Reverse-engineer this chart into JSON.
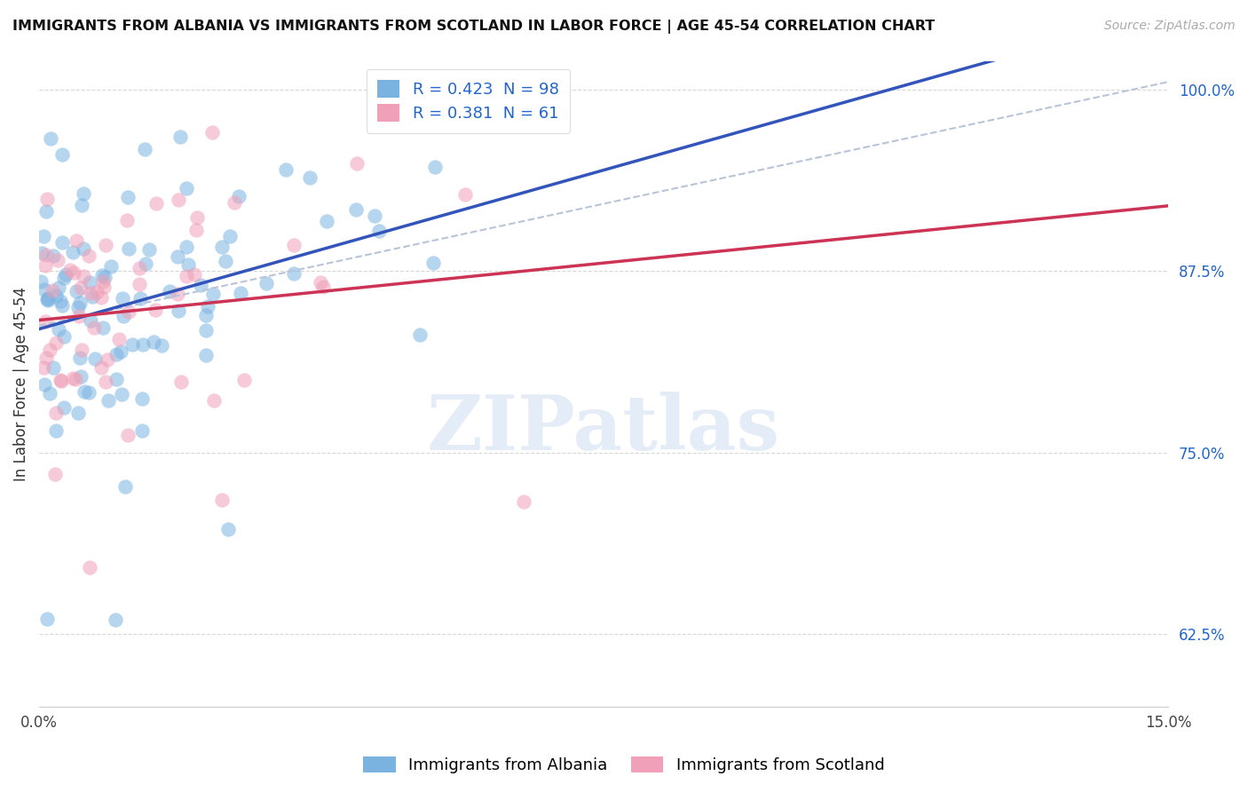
{
  "title": "IMMIGRANTS FROM ALBANIA VS IMMIGRANTS FROM SCOTLAND IN LABOR FORCE | AGE 45-54 CORRELATION CHART",
  "source": "Source: ZipAtlas.com",
  "ylabel": "In Labor Force | Age 45-54",
  "albania_R": 0.423,
  "albania_N": 98,
  "scotland_R": 0.381,
  "scotland_N": 61,
  "albania_color": "#7ab3e0",
  "scotland_color": "#f0a0b8",
  "albania_line_color": "#3355bb",
  "scotland_line_color": "#cc3355",
  "dashed_line_color": "#b8c4d8",
  "background_color": "#ffffff",
  "legend_label_albania": "Immigrants from Albania",
  "legend_label_scotland": "Immigrants from Scotland",
  "x_min": 0.0,
  "x_max": 0.15,
  "y_min": 0.575,
  "y_max": 1.02,
  "y_ticks": [
    0.625,
    0.75,
    0.875,
    1.0
  ],
  "y_tick_labels": [
    "62.5%",
    "75.0%",
    "87.5%",
    "100.0%"
  ],
  "x_tick_labels": [
    "0.0%",
    "15.0%"
  ],
  "legend_text_color": "#2266cc",
  "watermark": "ZIPatlas",
  "title_fontsize": 11.5,
  "source_fontsize": 10,
  "tick_fontsize": 12,
  "ylabel_fontsize": 12
}
